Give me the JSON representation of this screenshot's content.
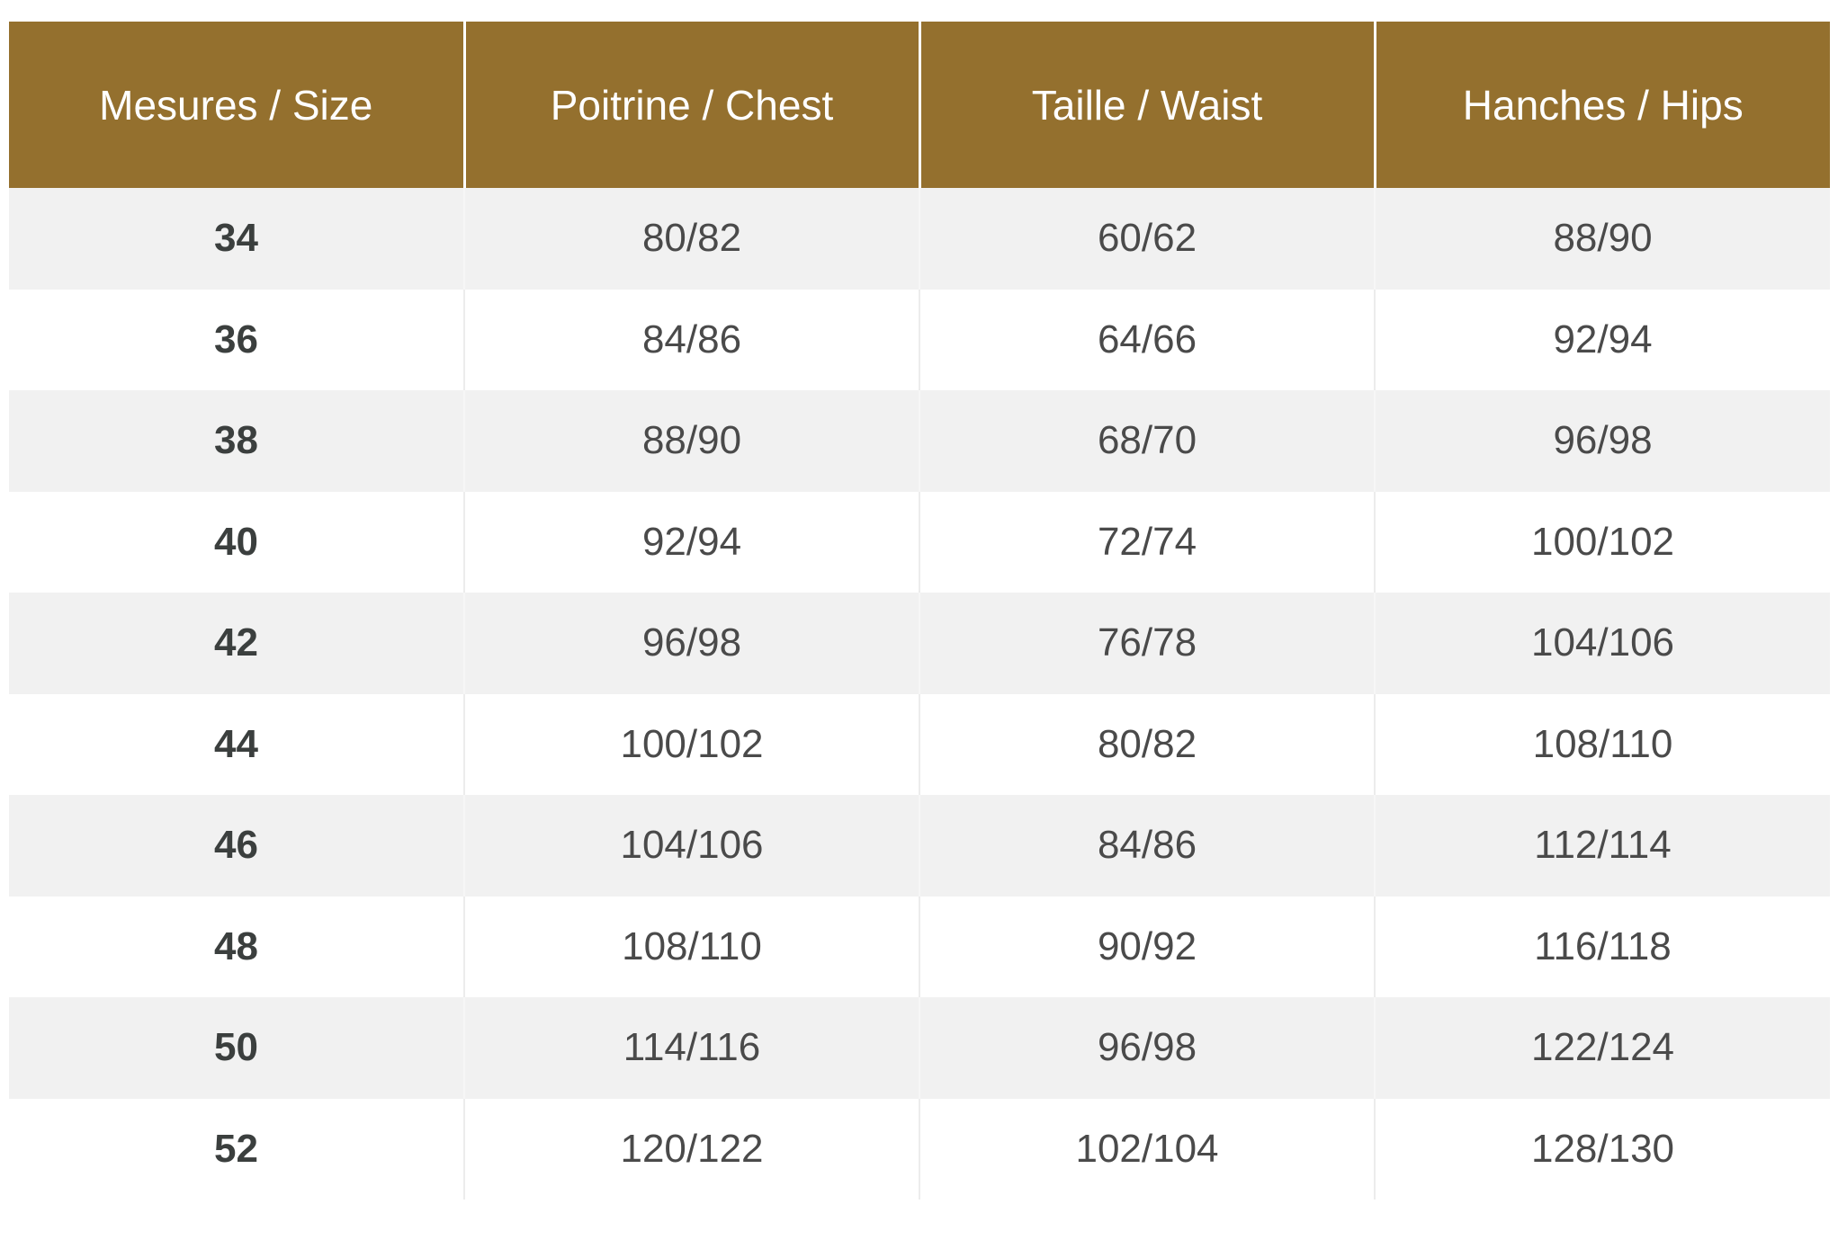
{
  "colors": {
    "header_bg": "#94702e",
    "stripe": "#f1f1f1"
  },
  "table": {
    "headers": [
      "Mesures / Size",
      "Poitrine / Chest",
      "Taille / Waist",
      "Hanches / Hips"
    ],
    "rows": [
      [
        "34",
        "80/82",
        "60/62",
        "88/90"
      ],
      [
        "36",
        "84/86",
        "64/66",
        "92/94"
      ],
      [
        "38",
        "88/90",
        "68/70",
        "96/98"
      ],
      [
        "40",
        "92/94",
        "72/74",
        "100/102"
      ],
      [
        "42",
        "96/98",
        "76/78",
        "104/106"
      ],
      [
        "44",
        "100/102",
        "80/82",
        "108/110"
      ],
      [
        "46",
        "104/106",
        "84/86",
        "112/114"
      ],
      [
        "48",
        "108/110",
        "90/92",
        "116/118"
      ],
      [
        "50",
        "114/116",
        "96/98",
        "122/124"
      ],
      [
        "52",
        "120/122",
        "102/104",
        "128/130"
      ]
    ]
  }
}
